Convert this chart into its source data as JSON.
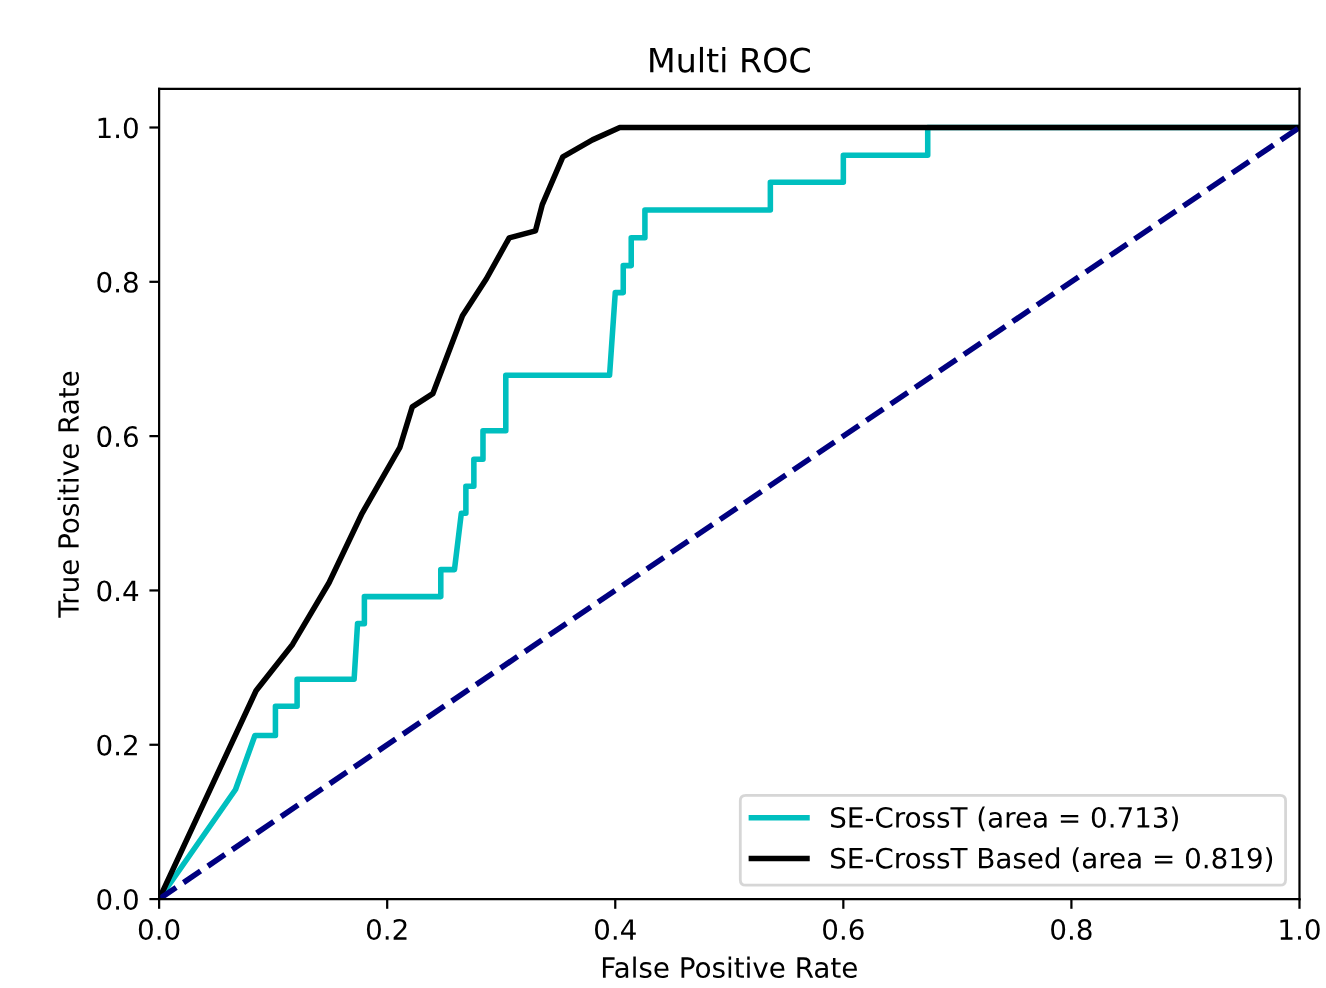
{
  "chart_data": {
    "type": "line",
    "title": "Multi ROC",
    "xlabel": "False Positive Rate",
    "ylabel": "True Positive Rate",
    "series": [
      {
        "name": "SE-CrossT (area = 0.713)",
        "color": "#00bfbf",
        "x": [
          0,
          0.067,
          0.084,
          0.102,
          0.102,
          0.121,
          0.121,
          0.171,
          0.174,
          0.18,
          0.18,
          0.247,
          0.247,
          0.259,
          0.265,
          0.269,
          0.269,
          0.276,
          0.276,
          0.284,
          0.284,
          0.304,
          0.304,
          0.395,
          0.4,
          0.407,
          0.407,
          0.414,
          0.414,
          0.426,
          0.426,
          0.536,
          0.536,
          0.6,
          0.6,
          0.674,
          0.674,
          1
        ],
        "values": [
          0,
          0.142,
          0.212,
          0.212,
          0.25,
          0.25,
          0.285,
          0.285,
          0.357,
          0.357,
          0.392,
          0.392,
          0.427,
          0.427,
          0.5,
          0.5,
          0.535,
          0.535,
          0.57,
          0.57,
          0.607,
          0.607,
          0.679,
          0.679,
          0.786,
          0.786,
          0.821,
          0.821,
          0.857,
          0.857,
          0.893,
          0.893,
          0.929,
          0.929,
          0.964,
          0.964,
          1.0,
          1.0
        ]
      },
      {
        "name": "SE-CrossT Based (area = 0.819)",
        "color": "#000000",
        "x": [
          0,
          0.085,
          0.117,
          0.149,
          0.178,
          0.211,
          0.222,
          0.24,
          0.266,
          0.287,
          0.307,
          0.33,
          0.336,
          0.354,
          0.38,
          0.404,
          1
        ],
        "values": [
          0,
          0.27,
          0.33,
          0.41,
          0.5,
          0.585,
          0.638,
          0.655,
          0.756,
          0.804,
          0.857,
          0.866,
          0.9,
          0.962,
          0.984,
          1.0,
          1.0
        ]
      },
      {
        "color": "#000080",
        "line_style": "dashed",
        "x": [
          0,
          1
        ],
        "values": [
          0,
          1
        ]
      }
    ],
    "xlim": [
      0,
      1
    ],
    "ylim": [
      0,
      1.05
    ],
    "xticks": [
      {
        "value": 0,
        "label": "0.0"
      },
      {
        "value": 0.2,
        "label": "0.2"
      },
      {
        "value": 0.4,
        "label": "0.4"
      },
      {
        "value": 0.6,
        "label": "0.6"
      },
      {
        "value": 0.8,
        "label": "0.8"
      },
      {
        "value": 1,
        "label": "1.0"
      }
    ],
    "yticks": [
      {
        "value": 0,
        "label": "0.0"
      },
      {
        "value": 0.2,
        "label": "0.2"
      },
      {
        "value": 0.4,
        "label": "0.4"
      },
      {
        "value": 0.6,
        "label": "0.6"
      },
      {
        "value": 0.8,
        "label": "0.8"
      },
      {
        "value": 1,
        "label": "1.0"
      }
    ],
    "grid": false,
    "legend": "lower right"
  }
}
